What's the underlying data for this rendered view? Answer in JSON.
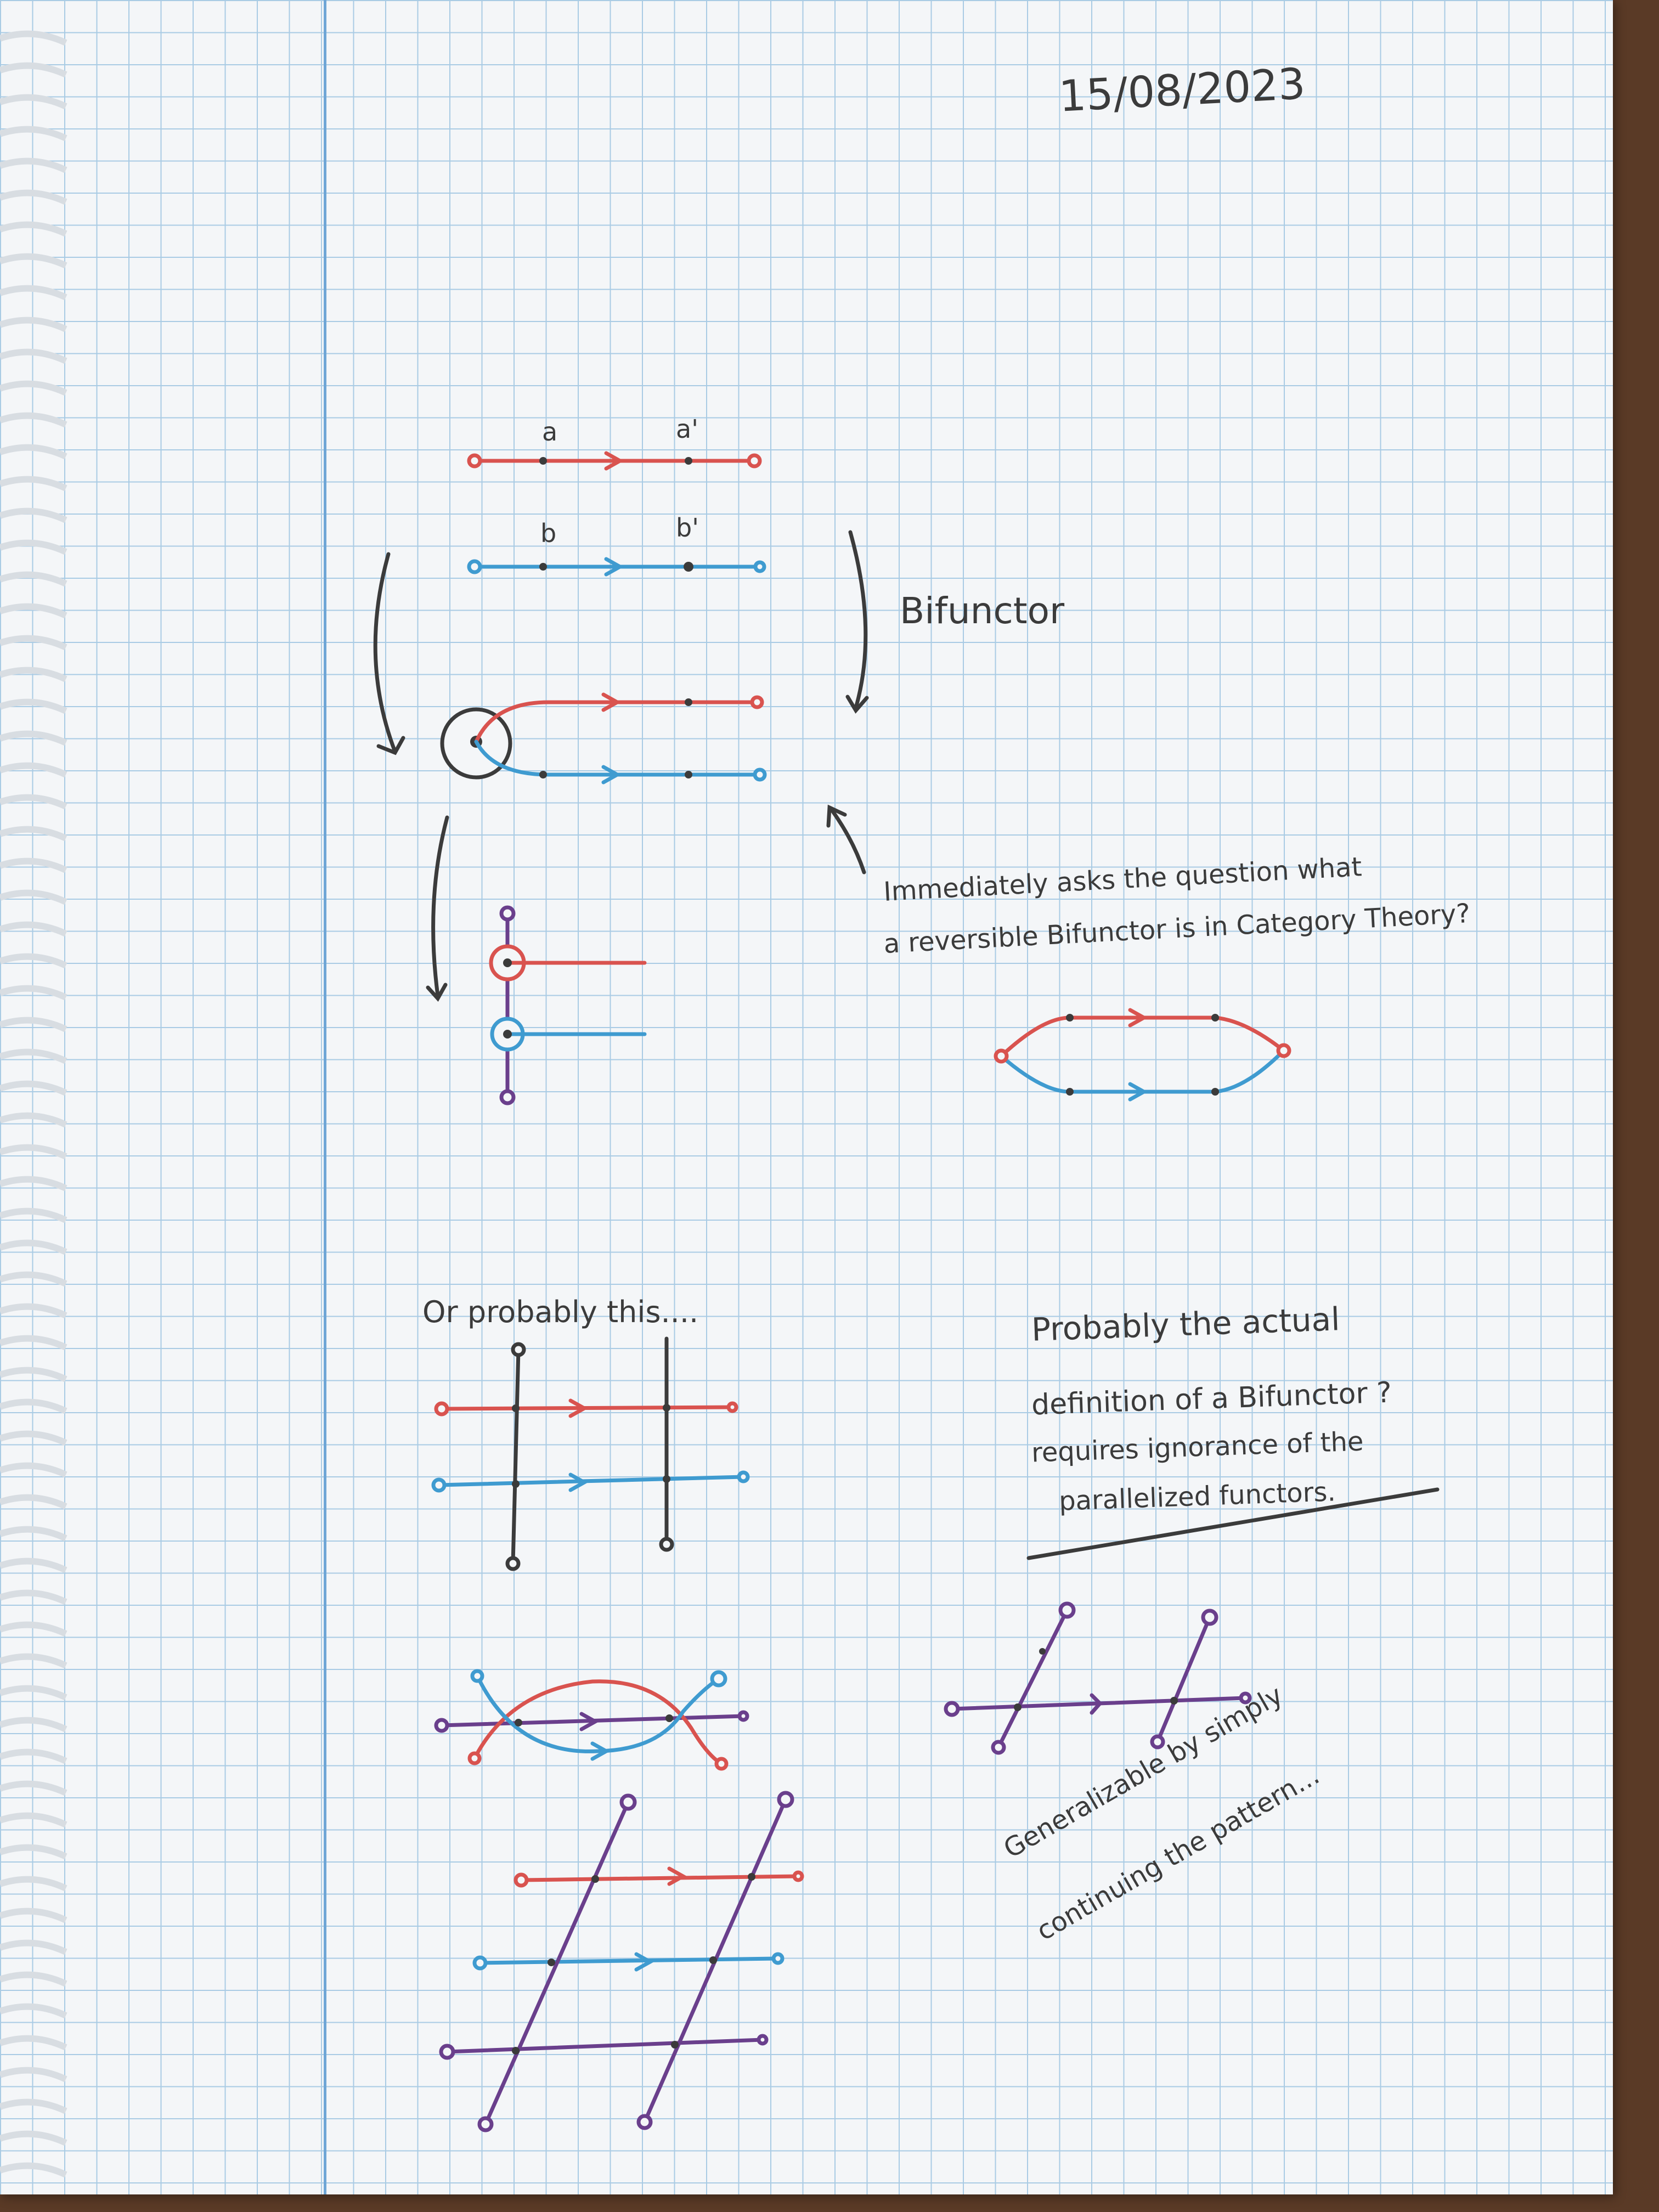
{
  "date": "15/08/2023",
  "labels": {
    "a": "a",
    "a_prime": "a'",
    "b": "b",
    "b_prime": "b'",
    "bifunctor": "Bifunctor",
    "question_line1": "Immediately asks the question what",
    "question_line2": "a reversible Bifunctor is in Category Theory?",
    "or_probably": "Or probably this....",
    "probably_1": "Probably the actual",
    "probably_2": "definition of a Bifunctor ?",
    "probably_3": "requires ignorance of the",
    "probably_4": "parallelized functors.",
    "general_1": "Generalizable by simply",
    "general_2": "continuing the pattern..."
  },
  "colors": {
    "red": "#d9534f",
    "blue": "#3f9bd0",
    "purple": "#6a3f8c",
    "ink": "#3b3b3b",
    "grid": "#a9cbe4",
    "paper": "#f4f6f8"
  }
}
